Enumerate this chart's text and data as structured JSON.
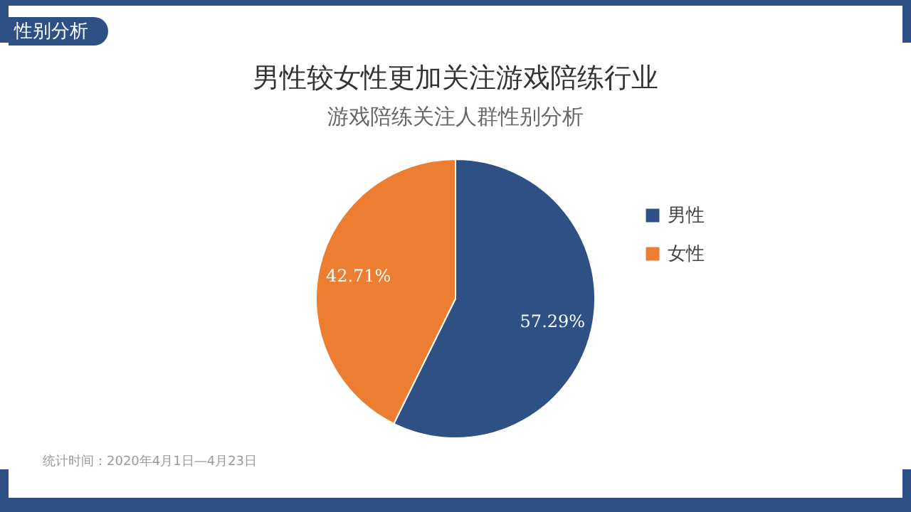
{
  "chart_data": {
    "type": "pie",
    "title": "男性较女性更加关注游戏陪练行业",
    "subtitle": "游戏陪练关注人群性别分析",
    "categories": [
      "男性",
      "女性"
    ],
    "values": [
      57.29,
      42.71
    ],
    "colors": [
      "#2e5085",
      "#ed7d31"
    ],
    "value_labels": [
      "57.29%",
      "42.71%"
    ],
    "legend": "right",
    "annotations": [
      "性别分析",
      "统计时间：2020年4月1日—4月23日"
    ]
  }
}
